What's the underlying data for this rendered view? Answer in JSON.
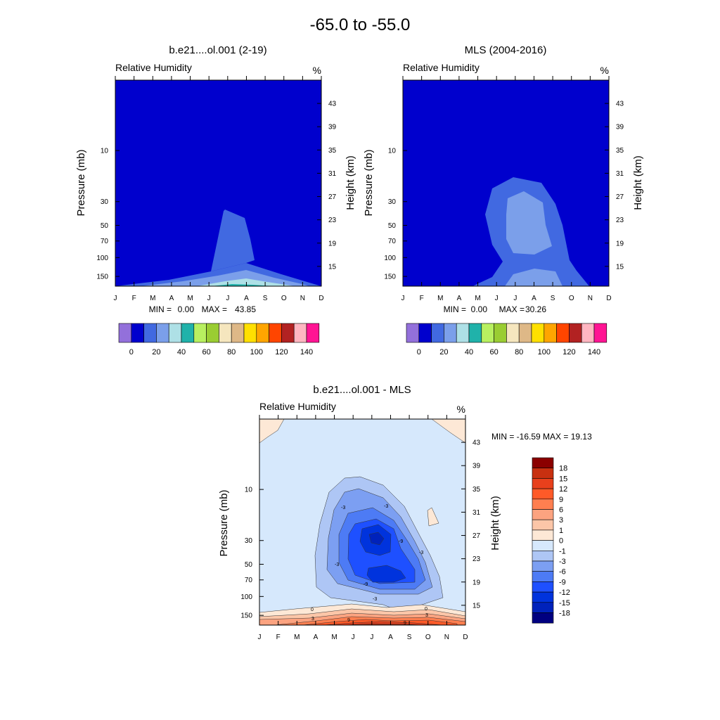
{
  "title": "-65.0 to -55.0",
  "colors": {
    "rh_palette": [
      "#9370DB",
      "#0000CD",
      "#4169E1",
      "#7B9FEA",
      "#AEE0E6",
      "#20B2AA",
      "#B8F060",
      "#9ACD32",
      "#F5E6BE",
      "#DEB887",
      "#FFE000",
      "#FFA500",
      "#FF4500",
      "#B22222",
      "#FFB6C1",
      "#FF1493"
    ],
    "diff_palette": [
      "#000080",
      "#0022BB",
      "#0033DD",
      "#1E50FF",
      "#4D7BF5",
      "#7C9FF2",
      "#AEC6F5",
      "#D6E8FC",
      "#FDE8D6",
      "#FCC6A8",
      "#FCA380",
      "#FF7F50",
      "#FF5A28",
      "#E8401C",
      "#C83010",
      "#8B0000"
    ],
    "panel_bg": "#0000CD"
  },
  "months": [
    "J",
    "F",
    "M",
    "A",
    "M",
    "J",
    "J",
    "A",
    "S",
    "O",
    "N",
    "D"
  ],
  "pressure_ticks": [
    "10",
    "30",
    "50",
    "70",
    "100",
    "150"
  ],
  "height_ticks": [
    "43",
    "39",
    "35",
    "31",
    "27",
    "23",
    "19",
    "15"
  ],
  "panels": [
    {
      "title": "b.e21....ol.001 (2-19)",
      "var_label": "Relative Humidity",
      "unit": "%",
      "ylabel": "Pressure (mb)",
      "y2label": "Height (km)",
      "min_label": "MIN =",
      "min_value": "0.00",
      "max_label": "MAX =",
      "max_value": "43.85"
    },
    {
      "title": "MLS (2004-2016)",
      "var_label": "Relative Humidity",
      "unit": "%",
      "ylabel": "Pressure (mb)",
      "y2label": "Height (km)",
      "min_label": "MIN =",
      "min_value": "0.00",
      "max_label": "MAX =",
      "max_value": "30.26"
    },
    {
      "title": "b.e21....ol.001 - MLS",
      "var_label": "Relative Humidity",
      "unit": "%",
      "ylabel": "Pressure (mb)",
      "y2label": "Height (km)",
      "minmax_text": "MIN = -16.59  MAX =  19.13"
    }
  ],
  "rh_colorbar_labels": [
    "0",
    "20",
    "40",
    "60",
    "80",
    "100",
    "120",
    "140"
  ],
  "diff_colorbar_labels": [
    "18",
    "15",
    "12",
    "9",
    "6",
    "3",
    "1",
    "0",
    "-1",
    "-3",
    "-6",
    "-9",
    "-12",
    "-15",
    "-18"
  ],
  "contour_labels": [
    "-3",
    "-3",
    "-3",
    "-3",
    "-9",
    "-9",
    "-3",
    "0",
    "0",
    "3",
    "3",
    "9",
    "9"
  ],
  "chart_data": [
    {
      "type": "heatmap",
      "title": "b.e21....ol.001 (2-19)",
      "variable": "Relative Humidity",
      "unit": "%",
      "x_categories": [
        "J",
        "F",
        "M",
        "A",
        "M",
        "J",
        "J",
        "A",
        "S",
        "O",
        "N",
        "D"
      ],
      "ylabel": "Pressure (mb)",
      "y2label": "Height (km)",
      "y_ticks_mb": [
        10,
        30,
        50,
        70,
        100,
        150
      ],
      "y_ticks_km": [
        43,
        39,
        35,
        31,
        27,
        23,
        19,
        15
      ],
      "y_scale": "log",
      "min": 0.0,
      "max": 43.85,
      "colorbar_levels": [
        0,
        20,
        40,
        60,
        80,
        100,
        120,
        140
      ]
    },
    {
      "type": "heatmap",
      "title": "MLS (2004-2016)",
      "variable": "Relative Humidity",
      "unit": "%",
      "x_categories": [
        "J",
        "F",
        "M",
        "A",
        "M",
        "J",
        "J",
        "A",
        "S",
        "O",
        "N",
        "D"
      ],
      "ylabel": "Pressure (mb)",
      "y2label": "Height (km)",
      "y_ticks_mb": [
        10,
        30,
        50,
        70,
        100,
        150
      ],
      "y_ticks_km": [
        43,
        39,
        35,
        31,
        27,
        23,
        19,
        15
      ],
      "y_scale": "log",
      "min": 0.0,
      "max": 30.26,
      "colorbar_levels": [
        0,
        20,
        40,
        60,
        80,
        100,
        120,
        140
      ]
    },
    {
      "type": "heatmap",
      "title": "b.e21....ol.001 - MLS",
      "variable": "Relative Humidity",
      "unit": "%",
      "x_categories": [
        "J",
        "F",
        "M",
        "A",
        "M",
        "J",
        "J",
        "A",
        "S",
        "O",
        "N",
        "D"
      ],
      "ylabel": "Pressure (mb)",
      "y2label": "Height (km)",
      "y_ticks_mb": [
        10,
        30,
        50,
        70,
        100,
        150
      ],
      "y_ticks_km": [
        43,
        39,
        35,
        31,
        27,
        23,
        19,
        15
      ],
      "y_scale": "log",
      "min": -16.59,
      "max": 19.13,
      "colorbar_levels": [
        18,
        15,
        12,
        9,
        6,
        3,
        1,
        0,
        -1,
        -3,
        -6,
        -9,
        -12,
        -15,
        -18
      ]
    }
  ]
}
